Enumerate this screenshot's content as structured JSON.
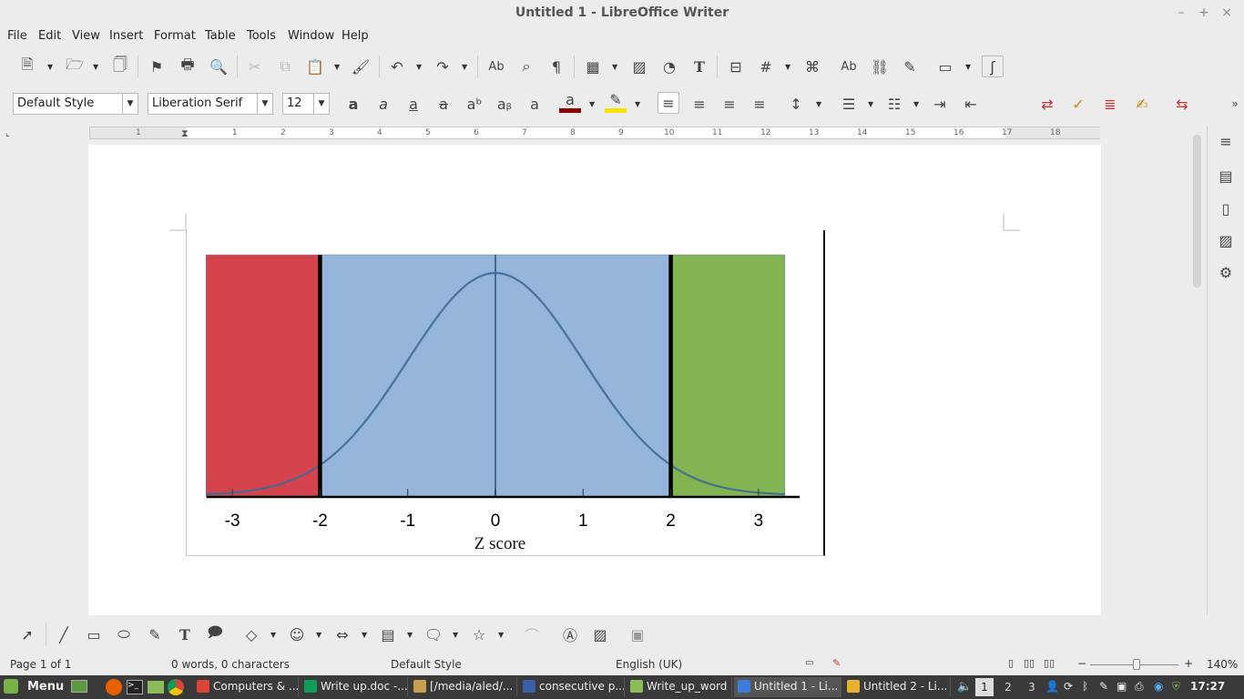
{
  "window": {
    "title": "Untitled 1 - LibreOffice Writer"
  },
  "menu": [
    "File",
    "Edit",
    "View",
    "Insert",
    "Format",
    "Table",
    "Tools",
    "Window",
    "Help"
  ],
  "format": {
    "paragraph_style": "Default Style",
    "font_name": "Liberation Serif",
    "font_size": "12"
  },
  "ruler": {
    "labels": [
      "1",
      "1",
      "2",
      "3",
      "4",
      "5",
      "6",
      "7",
      "8",
      "9",
      "10",
      "11",
      "12",
      "13",
      "14",
      "15",
      "16",
      "17",
      "18"
    ]
  },
  "chart_data": {
    "type": "area",
    "xlabel": "Z score",
    "ticks": [
      "-3",
      "-2",
      "-1",
      "0",
      "1",
      "2",
      "3"
    ],
    "xlim": [
      -3.3,
      3.3
    ],
    "regions": [
      {
        "from": -3.3,
        "to": -2,
        "color": "#d4424b"
      },
      {
        "from": -2,
        "to": 2,
        "color": "#95b5da"
      },
      {
        "from": 2,
        "to": 3.3,
        "color": "#82b552"
      }
    ],
    "boundaries": [
      -2,
      2
    ],
    "curve": "standard-normal-density",
    "curve_color": "#3d6a96"
  },
  "status": {
    "page": "Page 1 of 1",
    "words": "0 words, 0 characters",
    "style": "Default Style",
    "language": "English (UK)",
    "zoom": "140%"
  },
  "taskbar": {
    "menu_label": "Menu",
    "windows": [
      "Computers & ...",
      "Write up.doc -...",
      "[/media/aled/...",
      "consecutive p...",
      "Write_up_word",
      "Untitled 1 - Li...",
      "Untitled 2 - Li..."
    ],
    "workspaces": [
      "1",
      "2",
      "3"
    ],
    "clock": "17:27"
  }
}
